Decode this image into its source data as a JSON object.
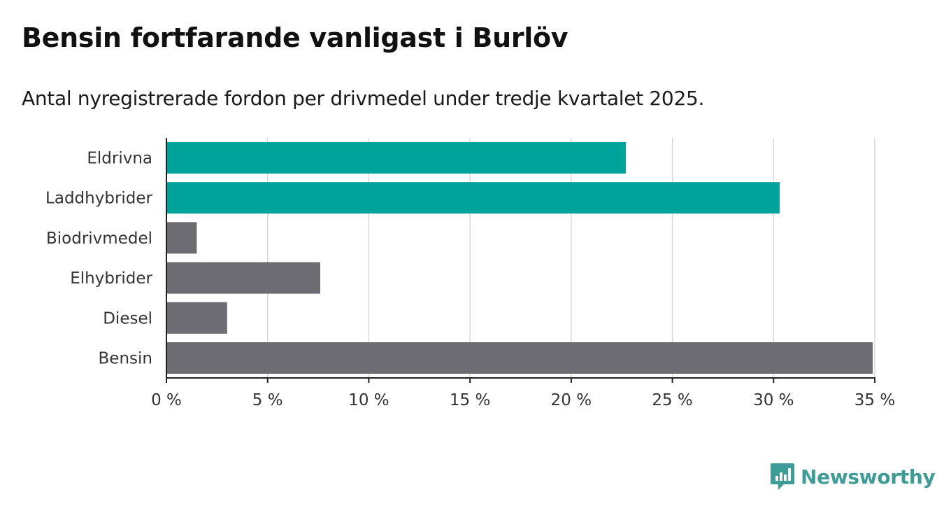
{
  "chart_data": {
    "type": "bar",
    "orientation": "horizontal",
    "title": "Bensin fortfarande vanligast i Burlöv",
    "subtitle": "Antal nyregistrerade fordon per drivmedel under tredje kvartalet 2025.",
    "categories": [
      "Eldrivna",
      "Laddhybrider",
      "Biodrivmedel",
      "Elhybrider",
      "Diesel",
      "Bensin"
    ],
    "values": [
      22.7,
      30.3,
      1.5,
      7.6,
      3.0,
      34.9
    ],
    "colors": [
      "#00a39a",
      "#00a39a",
      "#6d6c72",
      "#6d6c72",
      "#6d6c72",
      "#6d6c72"
    ],
    "xlim": [
      0,
      35
    ],
    "xticks": [
      0,
      5,
      10,
      15,
      20,
      25,
      30,
      35
    ],
    "xtick_labels": [
      "0 %",
      "5 %",
      "10 %",
      "15 %",
      "20 %",
      "25 %",
      "30 %",
      "35 %"
    ],
    "xlabel": "",
    "ylabel": "",
    "grid": "vertical",
    "legend": "none"
  },
  "branding": {
    "logo_text": "Newsworthy",
    "logo_icon": "bar-chart-speech-bubble-icon",
    "accent": "#3d9c96"
  }
}
